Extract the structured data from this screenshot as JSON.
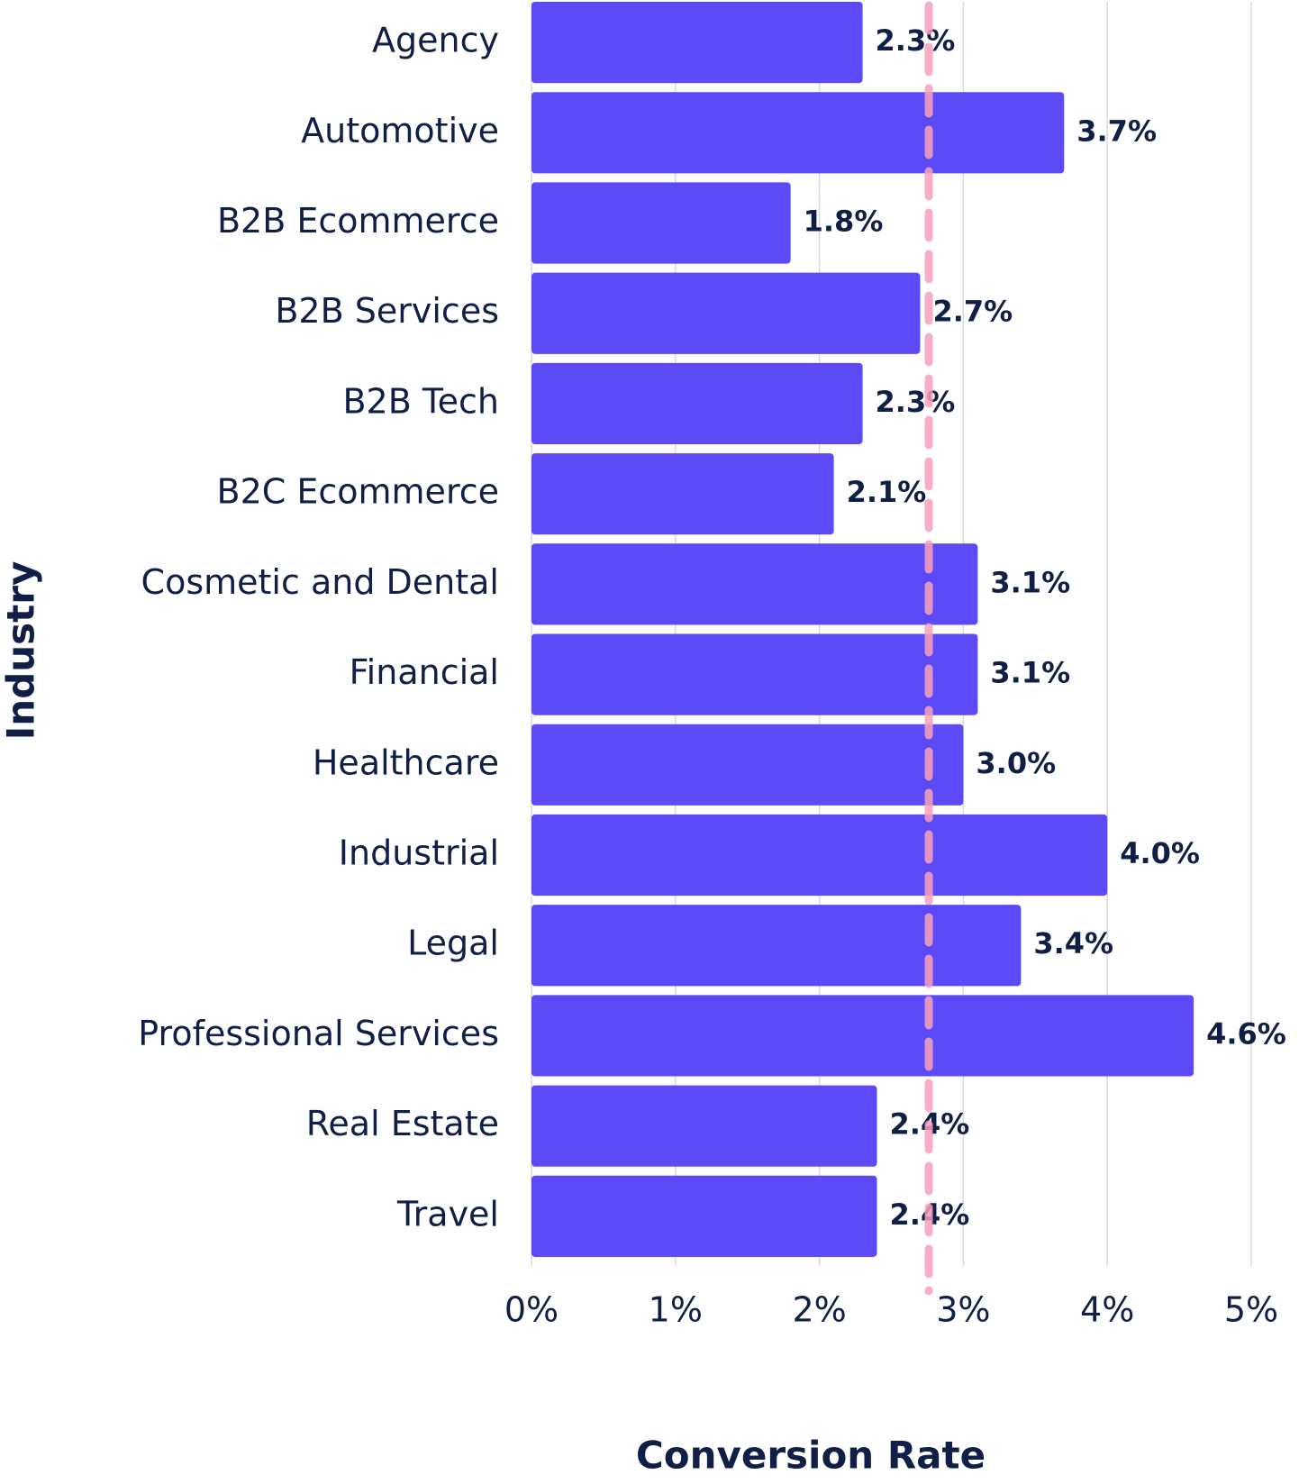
{
  "chart_data": {
    "type": "bar",
    "orientation": "horizontal",
    "x_label": "Conversion Rate",
    "y_label": "Industry",
    "categories": [
      "Agency",
      "Automotive",
      "B2B Ecommerce",
      "B2B Services",
      "B2B Tech",
      "B2C Ecommerce",
      "Cosmetic and Dental",
      "Financial",
      "Healthcare",
      "Industrial",
      "Legal",
      "Professional Services",
      "Real Estate",
      "Travel"
    ],
    "values": [
      2.3,
      3.7,
      1.8,
      2.7,
      2.3,
      2.1,
      3.1,
      3.1,
      3.0,
      4.0,
      3.4,
      4.6,
      2.4,
      2.4
    ],
    "value_labels": [
      "2.3%",
      "3.7%",
      "1.8%",
      "2.7%",
      "2.3%",
      "2.1%",
      "3.1%",
      "3.1%",
      "3.0%",
      "4.0%",
      "3.4%",
      "4.6%",
      "2.4%",
      "2.4%"
    ],
    "color": "#5b4af5",
    "reference_line": {
      "value": 2.76,
      "color": "#f9a0bb"
    },
    "xlim": [
      0,
      5
    ],
    "xticks": [
      {
        "value": 0,
        "label": "0%"
      },
      {
        "value": 1,
        "label": "1%"
      },
      {
        "value": 2,
        "label": "2%"
      },
      {
        "value": 3,
        "label": "3%"
      },
      {
        "value": 4,
        "label": "4%"
      },
      {
        "value": 5,
        "label": "5%"
      }
    ],
    "grid": true
  }
}
